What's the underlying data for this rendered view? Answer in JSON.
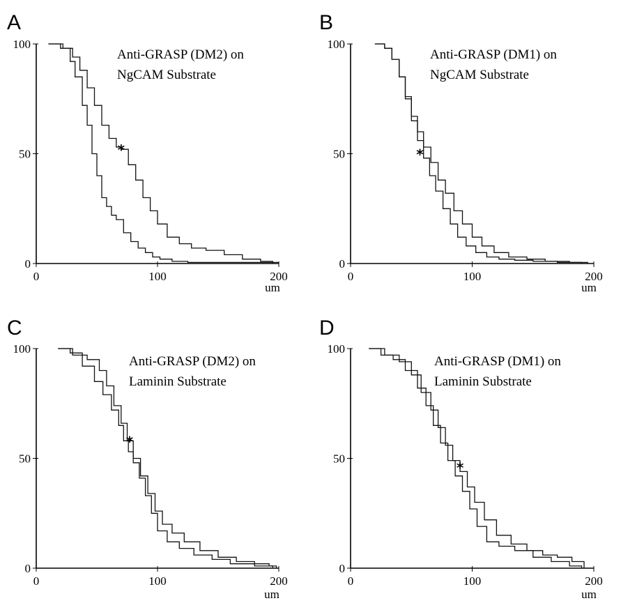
{
  "chart_data": [
    {
      "panel_letter": "A",
      "type": "line",
      "title_lines": [
        "Anti-GRASP (DM2)  on",
        "NgCAM Substrate"
      ],
      "x_unit": "um",
      "xlim": [
        0,
        200
      ],
      "ylim": [
        0,
        100
      ],
      "xticks": [
        0,
        100,
        200
      ],
      "yticks": [
        0,
        50,
        100
      ],
      "marker": {
        "text": "*",
        "x": 70,
        "y": 52
      },
      "series": [
        {
          "x": [
            10,
            20,
            28,
            32,
            38,
            42,
            46,
            50,
            54,
            58,
            62,
            66,
            72,
            78,
            84,
            90,
            96,
            102,
            112,
            125,
            200
          ],
          "y": [
            100,
            98,
            92,
            85,
            72,
            63,
            50,
            40,
            30,
            26,
            22,
            20,
            14,
            10,
            7,
            5,
            3,
            2,
            1,
            0.5,
            0
          ]
        },
        {
          "x": [
            10,
            22,
            30,
            36,
            42,
            48,
            54,
            60,
            66,
            70,
            76,
            82,
            88,
            94,
            100,
            108,
            118,
            128,
            140,
            155,
            170,
            185,
            195
          ],
          "y": [
            100,
            98,
            94,
            88,
            80,
            72,
            63,
            57,
            53,
            52,
            45,
            38,
            30,
            24,
            18,
            12,
            9,
            7,
            6,
            4,
            2,
            1,
            0
          ]
        }
      ]
    },
    {
      "panel_letter": "B",
      "type": "line",
      "title_lines": [
        "Anti-GRASP (DM1)  on",
        "NgCAM Substrate"
      ],
      "x_unit": "um",
      "xlim": [
        0,
        200
      ],
      "ylim": [
        0,
        100
      ],
      "xticks": [
        0,
        100,
        200
      ],
      "yticks": [
        0,
        50,
        100
      ],
      "marker": {
        "text": "*",
        "x": 57,
        "y": 50
      },
      "series": [
        {
          "x": [
            20,
            28,
            34,
            40,
            45,
            50,
            55,
            60,
            65,
            70,
            76,
            82,
            88,
            95,
            103,
            112,
            122,
            135,
            150,
            170,
            190
          ],
          "y": [
            100,
            98,
            93,
            85,
            75,
            65,
            56,
            48,
            40,
            33,
            25,
            18,
            12,
            8,
            5,
            3,
            2,
            1.5,
            1,
            0.5,
            0
          ]
        },
        {
          "x": [
            20,
            28,
            34,
            40,
            45,
            50,
            55,
            60,
            66,
            72,
            78,
            85,
            92,
            100,
            108,
            118,
            130,
            145,
            160,
            180,
            195
          ],
          "y": [
            100,
            98,
            93,
            85,
            76,
            67,
            60,
            53,
            46,
            38,
            32,
            24,
            18,
            12,
            8,
            5,
            3,
            2,
            1,
            0.5,
            0
          ]
        }
      ]
    },
    {
      "panel_letter": "C",
      "type": "line",
      "title_lines": [
        "Anti-GRASP (DM2)  on",
        "Laminin Substrate"
      ],
      "x_unit": "um",
      "xlim": [
        0,
        200
      ],
      "ylim": [
        0,
        100
      ],
      "xticks": [
        0,
        100,
        200
      ],
      "yticks": [
        0,
        50,
        100
      ],
      "marker": {
        "text": "*",
        "x": 77,
        "y": 58
      },
      "series": [
        {
          "x": [
            18,
            28,
            38,
            48,
            55,
            62,
            68,
            72,
            76,
            80,
            85,
            90,
            95,
            100,
            108,
            118,
            130,
            145,
            160,
            180,
            195
          ],
          "y": [
            100,
            98,
            92,
            85,
            79,
            72,
            65,
            58,
            53,
            48,
            41,
            33,
            25,
            17,
            12,
            9,
            6,
            4,
            2,
            1,
            0
          ]
        },
        {
          "x": [
            18,
            30,
            42,
            52,
            58,
            64,
            70,
            75,
            80,
            86,
            92,
            98,
            104,
            112,
            122,
            135,
            150,
            165,
            180,
            192,
            198
          ],
          "y": [
            100,
            97,
            95,
            90,
            83,
            74,
            66,
            58,
            50,
            42,
            34,
            26,
            20,
            16,
            12,
            8,
            5,
            3,
            2,
            1,
            0
          ]
        }
      ]
    },
    {
      "panel_letter": "D",
      "type": "line",
      "title_lines": [
        "Anti-GRASP (DM1)  on",
        "Laminin Substrate"
      ],
      "x_unit": "um",
      "xlim": [
        0,
        200
      ],
      "ylim": [
        0,
        100
      ],
      "xticks": [
        0,
        100,
        200
      ],
      "yticks": [
        0,
        50,
        100
      ],
      "marker": {
        "text": "*",
        "x": 90,
        "y": 46
      },
      "series": [
        {
          "x": [
            15,
            25,
            35,
            45,
            55,
            62,
            68,
            74,
            80,
            86,
            92,
            98,
            104,
            112,
            122,
            135,
            150,
            165,
            180,
            190
          ],
          "y": [
            100,
            97,
            95,
            90,
            82,
            74,
            65,
            57,
            49,
            42,
            35,
            27,
            19,
            12,
            10,
            8,
            5,
            3,
            1,
            0
          ]
        },
        {
          "x": [
            15,
            28,
            40,
            50,
            58,
            66,
            72,
            78,
            84,
            90,
            96,
            102,
            110,
            120,
            132,
            145,
            158,
            170,
            182,
            192
          ],
          "y": [
            100,
            97,
            94,
            88,
            80,
            72,
            64,
            56,
            49,
            44,
            37,
            30,
            22,
            15,
            11,
            8,
            6,
            5,
            3,
            0
          ]
        }
      ]
    }
  ]
}
